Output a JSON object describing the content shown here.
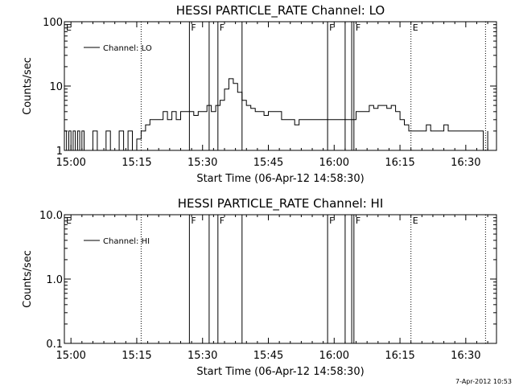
{
  "chart_data": [
    {
      "type": "line",
      "title": "HESSI PARTICLE_RATE Channel: LO",
      "xlabel": "Start Time (06-Apr-12 14:58:30)",
      "ylabel": "Counts/sec",
      "xlim": [
        "14:58:30",
        "16:37:00"
      ],
      "x_ticks": [
        "15:00",
        "15:15",
        "15:30",
        "15:45",
        "16:00",
        "16:15",
        "16:30"
      ],
      "y_scale": "log",
      "ylim": [
        1,
        100
      ],
      "y_ticks": [
        "1",
        "10",
        "100"
      ],
      "grid": false,
      "legend": "top-left",
      "series": [
        {
          "name": "Channel: LO",
          "x": [
            "14:58:30",
            "14:59:00",
            "14:59:30",
            "15:00:00",
            "15:00:30",
            "15:01:00",
            "15:01:30",
            "15:02:00",
            "15:02:30",
            "15:03:00",
            "15:04:00",
            "15:05:00",
            "15:06:00",
            "15:07:00",
            "15:08:00",
            "15:09:00",
            "15:10:00",
            "15:11:00",
            "15:12:00",
            "15:13:00",
            "15:14:00",
            "15:15:00",
            "15:16:00",
            "15:17:00",
            "15:18:00",
            "15:19:00",
            "15:20:00",
            "15:21:00",
            "15:22:00",
            "15:23:00",
            "15:24:00",
            "15:25:00",
            "15:26:00",
            "15:27:00",
            "15:28:00",
            "15:29:00",
            "15:30:00",
            "15:31:00",
            "15:32:00",
            "15:33:00",
            "15:34:00",
            "15:35:00",
            "15:36:00",
            "15:37:00",
            "15:38:00",
            "15:39:00",
            "15:40:00",
            "15:41:00",
            "15:42:00",
            "15:43:00",
            "15:44:00",
            "15:45:00",
            "15:46:00",
            "15:47:00",
            "15:48:00",
            "15:49:00",
            "15:50:00",
            "15:51:00",
            "15:52:00",
            "15:53:00",
            "15:54:00",
            "15:55:00",
            "15:56:00",
            "15:57:00",
            "15:58:00",
            "15:59:00",
            "16:00:00",
            "16:01:00",
            "16:02:00",
            "16:03:00",
            "16:04:00",
            "16:05:00",
            "16:06:00",
            "16:07:00",
            "16:08:00",
            "16:09:00",
            "16:10:00",
            "16:11:00",
            "16:12:00",
            "16:13:00",
            "16:14:00",
            "16:15:00",
            "16:16:00",
            "16:17:00",
            "16:18:00",
            "16:19:00",
            "16:20:00",
            "16:21:00",
            "16:22:00",
            "16:23:00",
            "16:24:00",
            "16:25:00",
            "16:26:00",
            "16:27:00",
            "16:28:00",
            "16:29:00",
            "16:30:00",
            "16:31:00",
            "16:32:00",
            "16:33:00",
            "16:34:00",
            "16:35:00"
          ],
          "values": [
            2,
            1,
            2,
            1,
            2,
            1,
            2,
            1,
            2,
            1,
            1,
            2,
            1,
            1,
            2,
            1,
            1,
            2,
            1,
            2,
            1,
            1.5,
            2,
            2.5,
            3,
            3,
            3,
            4,
            3,
            4,
            3,
            4,
            4,
            4,
            3.5,
            4,
            4,
            5,
            4,
            5,
            6,
            9,
            13,
            11,
            8,
            6,
            5,
            4.5,
            4,
            4,
            3.5,
            4,
            4,
            4,
            3,
            3,
            3,
            2.5,
            3,
            3,
            3,
            3,
            3,
            3,
            3,
            3,
            3,
            3,
            3,
            3,
            3,
            4,
            4,
            4,
            5,
            4.5,
            5,
            5,
            4.5,
            5,
            4,
            3,
            2.5,
            2,
            2,
            2,
            2,
            2.5,
            2,
            2,
            2,
            2.5,
            2,
            2,
            2,
            2,
            2,
            2,
            2,
            2,
            1,
            2
          ]
        }
      ],
      "vertical_markers": [
        {
          "label": "E",
          "time": "14:58:30",
          "style": "dotted"
        },
        {
          "label": "",
          "time": "15:16:00",
          "style": "dotted"
        },
        {
          "label": "F",
          "time": "15:27:00",
          "style": "solid"
        },
        {
          "label": "",
          "time": "15:31:30",
          "style": "solid"
        },
        {
          "label": "F",
          "time": "15:33:30",
          "style": "solid"
        },
        {
          "label": "",
          "time": "15:39:00",
          "style": "solid"
        },
        {
          "label": "F",
          "time": "15:58:30",
          "style": "solid"
        },
        {
          "label": "",
          "time": "16:02:30",
          "style": "solid"
        },
        {
          "label": "",
          "time": "16:04:00",
          "style": "solid"
        },
        {
          "label": "F",
          "time": "16:04:30",
          "style": "solid"
        },
        {
          "label": "E",
          "time": "16:17:30",
          "style": "dotted"
        },
        {
          "label": "",
          "time": "16:34:30",
          "style": "dotted"
        }
      ]
    },
    {
      "type": "line",
      "title": "HESSI PARTICLE_RATE Channel: HI",
      "xlabel": "Start Time (06-Apr-12 14:58:30)",
      "ylabel": "Counts/sec",
      "xlim": [
        "14:58:30",
        "16:37:00"
      ],
      "x_ticks": [
        "15:00",
        "15:15",
        "15:30",
        "15:45",
        "16:00",
        "16:15",
        "16:30"
      ],
      "y_scale": "log",
      "ylim": [
        0.1,
        10.0
      ],
      "y_ticks": [
        "0.1",
        "1.0",
        "10.0"
      ],
      "grid": false,
      "legend": "top-left",
      "series": [
        {
          "name": "Channel: HI",
          "x": [],
          "values": []
        }
      ],
      "vertical_markers": [
        {
          "label": "E",
          "time": "14:58:30",
          "style": "dotted"
        },
        {
          "label": "",
          "time": "15:16:00",
          "style": "dotted"
        },
        {
          "label": "F",
          "time": "15:27:00",
          "style": "solid"
        },
        {
          "label": "",
          "time": "15:31:30",
          "style": "solid"
        },
        {
          "label": "F",
          "time": "15:33:30",
          "style": "solid"
        },
        {
          "label": "",
          "time": "15:39:00",
          "style": "solid"
        },
        {
          "label": "F",
          "time": "15:58:30",
          "style": "solid"
        },
        {
          "label": "",
          "time": "16:02:30",
          "style": "solid"
        },
        {
          "label": "",
          "time": "16:04:00",
          "style": "solid"
        },
        {
          "label": "F",
          "time": "16:04:30",
          "style": "solid"
        },
        {
          "label": "E",
          "time": "16:17:30",
          "style": "dotted"
        },
        {
          "label": "",
          "time": "16:34:30",
          "style": "dotted"
        }
      ]
    }
  ],
  "footer": {
    "timestamp": "7-Apr-2012 10:53"
  }
}
